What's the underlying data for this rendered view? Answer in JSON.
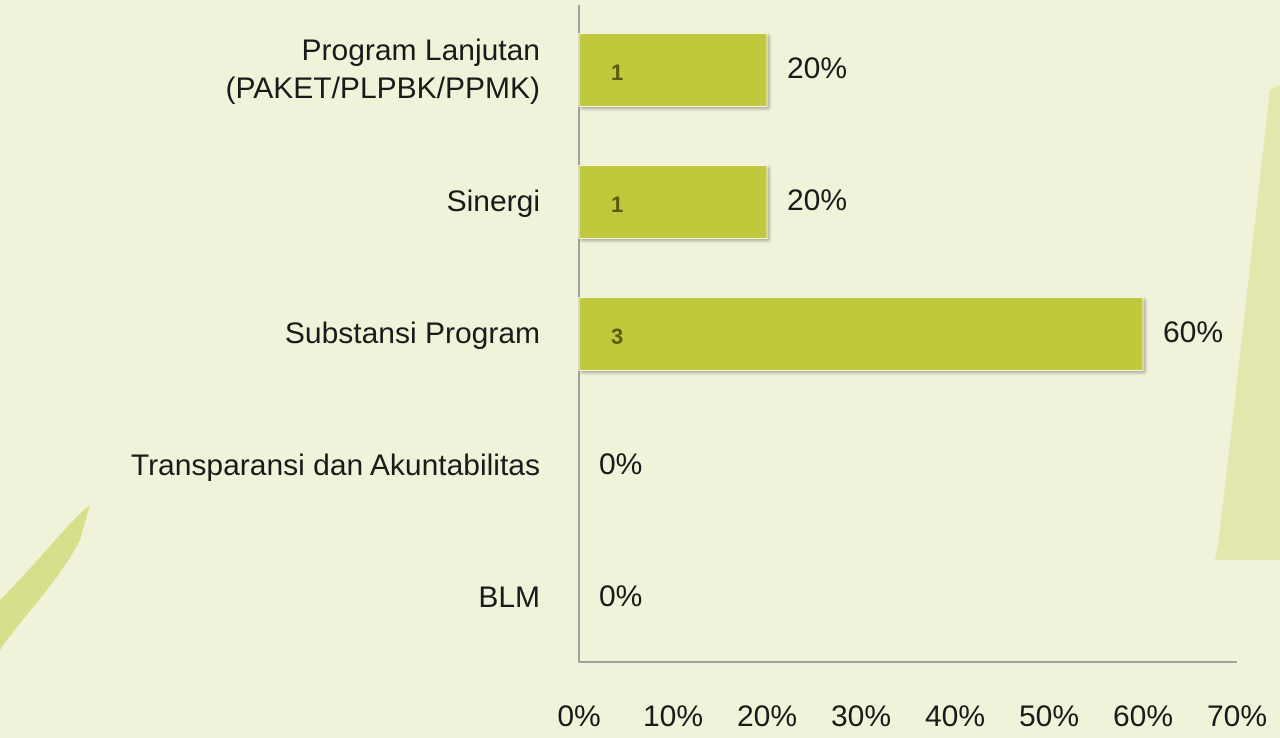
{
  "chart_data": {
    "type": "barh",
    "categories": [
      "Program Lanjutan\n(PAKET/PLPBK/PPMK)",
      "Sinergi",
      "Substansi Program",
      "Transparansi dan Akuntabilitas",
      "BLM"
    ],
    "values": [
      20,
      20,
      60,
      0,
      0
    ],
    "value_labels": [
      "20%",
      "20%",
      "60%",
      "0%",
      "0%"
    ],
    "counts": [
      1,
      1,
      3,
      null,
      null
    ],
    "color": "#bfc93a",
    "xlim": [
      0,
      70
    ],
    "xticks": [
      {
        "value": 0,
        "label": "0%"
      },
      {
        "value": 10,
        "label": "10%"
      },
      {
        "value": 20,
        "label": "20%"
      },
      {
        "value": 30,
        "label": "30%"
      },
      {
        "value": 40,
        "label": "40%"
      },
      {
        "value": 50,
        "label": "50%"
      },
      {
        "value": 60,
        "label": "60%"
      },
      {
        "value": 70,
        "label": "70%"
      }
    ],
    "grid": false
  }
}
